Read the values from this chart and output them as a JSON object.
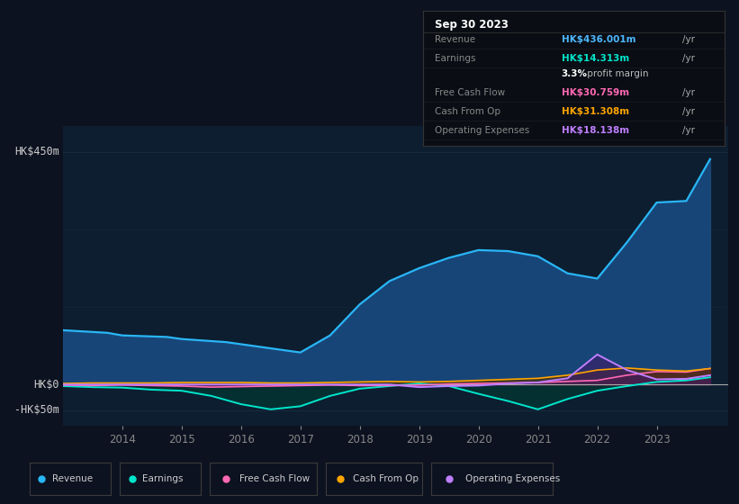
{
  "background_color": "#0c1220",
  "plot_bg_color": "#0d1e30",
  "grid_color": "#1a2e44",
  "title_box": {
    "date": "Sep 30 2023",
    "rows": [
      {
        "label": "Revenue",
        "value": "HK$436.001m",
        "value_color": "#4db8ff",
        "suffix": "/yr"
      },
      {
        "label": "Earnings",
        "value": "HK$14.313m",
        "value_color": "#00e5cc",
        "suffix": "/yr"
      },
      {
        "label": "",
        "value": "3.3%",
        "value_color": "#ffffff",
        "suffix": " profit margin",
        "bold_val": true
      },
      {
        "label": "Free Cash Flow",
        "value": "HK$30.759m",
        "value_color": "#ff69b4",
        "suffix": "/yr"
      },
      {
        "label": "Cash From Op",
        "value": "HK$31.308m",
        "value_color": "#ffa500",
        "suffix": "/yr"
      },
      {
        "label": "Operating Expenses",
        "value": "HK$18.138m",
        "value_color": "#bf7fff",
        "suffix": "/yr"
      }
    ]
  },
  "ytick_labels": [
    "HK$450m",
    "HK$0",
    "-HK$50m"
  ],
  "ytick_values": [
    450,
    0,
    -50
  ],
  "ylim": [
    -80,
    500
  ],
  "xlim": [
    2013.0,
    2024.2
  ],
  "xticks": [
    2014,
    2015,
    2016,
    2017,
    2018,
    2019,
    2020,
    2021,
    2022,
    2023
  ],
  "series": {
    "Revenue": {
      "color": "#29b6f6",
      "fill_color": "#1a4a80",
      "fill_alpha": 0.9,
      "x": [
        2013.0,
        2013.75,
        2014.0,
        2014.75,
        2015.0,
        2015.75,
        2016.0,
        2016.5,
        2017.0,
        2017.5,
        2018.0,
        2018.5,
        2019.0,
        2019.5,
        2020.0,
        2020.5,
        2021.0,
        2021.5,
        2022.0,
        2022.5,
        2023.0,
        2023.5,
        2023.9
      ],
      "y": [
        105,
        100,
        95,
        92,
        88,
        82,
        78,
        70,
        62,
        95,
        155,
        200,
        225,
        245,
        260,
        258,
        248,
        215,
        205,
        275,
        352,
        355,
        436
      ]
    },
    "Earnings": {
      "color": "#00e5cc",
      "fill_color": "#003d35",
      "fill_alpha": 0.6,
      "x": [
        2013.0,
        2013.5,
        2014.0,
        2014.5,
        2015.0,
        2015.5,
        2016.0,
        2016.5,
        2017.0,
        2017.5,
        2018.0,
        2018.5,
        2019.0,
        2019.5,
        2020.0,
        2020.5,
        2021.0,
        2021.5,
        2022.0,
        2022.5,
        2023.0,
        2023.5,
        2023.9
      ],
      "y": [
        -3,
        -5,
        -6,
        -10,
        -12,
        -22,
        -38,
        -48,
        -42,
        -22,
        -8,
        -3,
        2,
        -3,
        -18,
        -32,
        -48,
        -28,
        -12,
        -3,
        5,
        8,
        14
      ]
    },
    "FreeCashFlow": {
      "color": "#ff69b4",
      "fill_color": "#6b0030",
      "fill_alpha": 0.5,
      "x": [
        2013.0,
        2013.5,
        2014.0,
        2014.5,
        2015.0,
        2015.5,
        2016.0,
        2016.5,
        2017.0,
        2017.5,
        2018.0,
        2018.5,
        2019.0,
        2019.5,
        2020.0,
        2020.5,
        2021.0,
        2021.5,
        2022.0,
        2022.5,
        2023.0,
        2023.5,
        2023.9
      ],
      "y": [
        -1,
        -2,
        -1,
        -2,
        -3,
        -5,
        -4,
        -3,
        -2,
        -1,
        -2,
        -2,
        -1,
        1,
        2,
        3,
        4,
        6,
        8,
        18,
        25,
        24,
        31
      ]
    },
    "CashFromOp": {
      "color": "#ffa500",
      "fill_color": "#5a3000",
      "fill_alpha": 0.6,
      "x": [
        2013.0,
        2013.5,
        2014.0,
        2014.5,
        2015.0,
        2015.5,
        2016.0,
        2016.5,
        2017.0,
        2017.5,
        2018.0,
        2018.5,
        2019.0,
        2019.5,
        2020.0,
        2020.5,
        2021.0,
        2021.5,
        2022.0,
        2022.5,
        2023.0,
        2023.5,
        2023.9
      ],
      "y": [
        2,
        3,
        3,
        3,
        4,
        4,
        4,
        3,
        3,
        4,
        5,
        6,
        5,
        6,
        8,
        10,
        12,
        18,
        28,
        32,
        28,
        26,
        31
      ]
    },
    "OperatingExpenses": {
      "color": "#bf7fff",
      "fill_color": "#3d1a6b",
      "fill_alpha": 0.6,
      "x": [
        2013.0,
        2013.5,
        2014.0,
        2014.5,
        2015.0,
        2015.5,
        2016.0,
        2016.5,
        2017.0,
        2017.5,
        2018.0,
        2018.5,
        2019.0,
        2019.5,
        2020.0,
        2020.5,
        2021.0,
        2021.5,
        2022.0,
        2022.5,
        2023.0,
        2023.5,
        2023.9
      ],
      "y": [
        0,
        0,
        0,
        0,
        0,
        0,
        0,
        0,
        0,
        0,
        0,
        0,
        -5,
        -3,
        -2,
        2,
        4,
        12,
        58,
        28,
        10,
        11,
        18
      ]
    }
  },
  "legend": [
    {
      "label": "Revenue",
      "color": "#29b6f6"
    },
    {
      "label": "Earnings",
      "color": "#00e5cc"
    },
    {
      "label": "Free Cash Flow",
      "color": "#ff69b4"
    },
    {
      "label": "Cash From Op",
      "color": "#ffa500"
    },
    {
      "label": "Operating Expenses",
      "color": "#bf7fff"
    }
  ]
}
